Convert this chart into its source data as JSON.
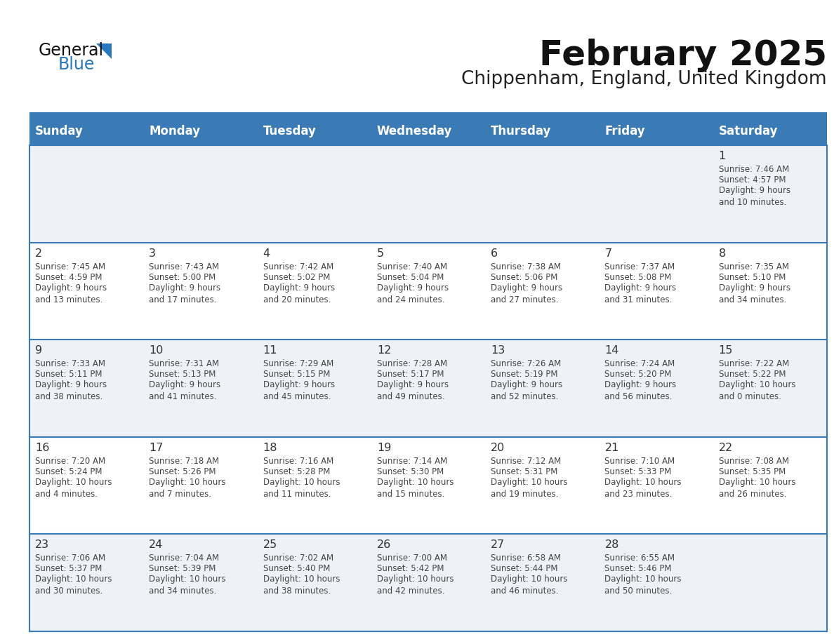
{
  "title": "February 2025",
  "subtitle": "Chippenham, England, United Kingdom",
  "header_bg": "#3a7ab5",
  "header_text": "#ffffff",
  "days_of_week": [
    "Sunday",
    "Monday",
    "Tuesday",
    "Wednesday",
    "Thursday",
    "Friday",
    "Saturday"
  ],
  "separator_color": "#3a7ab5",
  "cell_bg_odd": "#eef2f7",
  "cell_bg_even": "#ffffff",
  "grid_line_color": "#3a7ab5",
  "day_number_color": "#333333",
  "text_color": "#444444",
  "logo_general_color": "#1a1a1a",
  "logo_blue_color": "#2878c0",
  "calendar_data": [
    [
      null,
      null,
      null,
      null,
      null,
      null,
      {
        "day": 1,
        "sunrise": "7:46 AM",
        "sunset": "4:57 PM",
        "daylight": "9 hours\nand 10 minutes."
      }
    ],
    [
      {
        "day": 2,
        "sunrise": "7:45 AM",
        "sunset": "4:59 PM",
        "daylight": "9 hours\nand 13 minutes."
      },
      {
        "day": 3,
        "sunrise": "7:43 AM",
        "sunset": "5:00 PM",
        "daylight": "9 hours\nand 17 minutes."
      },
      {
        "day": 4,
        "sunrise": "7:42 AM",
        "sunset": "5:02 PM",
        "daylight": "9 hours\nand 20 minutes."
      },
      {
        "day": 5,
        "sunrise": "7:40 AM",
        "sunset": "5:04 PM",
        "daylight": "9 hours\nand 24 minutes."
      },
      {
        "day": 6,
        "sunrise": "7:38 AM",
        "sunset": "5:06 PM",
        "daylight": "9 hours\nand 27 minutes."
      },
      {
        "day": 7,
        "sunrise": "7:37 AM",
        "sunset": "5:08 PM",
        "daylight": "9 hours\nand 31 minutes."
      },
      {
        "day": 8,
        "sunrise": "7:35 AM",
        "sunset": "5:10 PM",
        "daylight": "9 hours\nand 34 minutes."
      }
    ],
    [
      {
        "day": 9,
        "sunrise": "7:33 AM",
        "sunset": "5:11 PM",
        "daylight": "9 hours\nand 38 minutes."
      },
      {
        "day": 10,
        "sunrise": "7:31 AM",
        "sunset": "5:13 PM",
        "daylight": "9 hours\nand 41 minutes."
      },
      {
        "day": 11,
        "sunrise": "7:29 AM",
        "sunset": "5:15 PM",
        "daylight": "9 hours\nand 45 minutes."
      },
      {
        "day": 12,
        "sunrise": "7:28 AM",
        "sunset": "5:17 PM",
        "daylight": "9 hours\nand 49 minutes."
      },
      {
        "day": 13,
        "sunrise": "7:26 AM",
        "sunset": "5:19 PM",
        "daylight": "9 hours\nand 52 minutes."
      },
      {
        "day": 14,
        "sunrise": "7:24 AM",
        "sunset": "5:20 PM",
        "daylight": "9 hours\nand 56 minutes."
      },
      {
        "day": 15,
        "sunrise": "7:22 AM",
        "sunset": "5:22 PM",
        "daylight": "10 hours\nand 0 minutes."
      }
    ],
    [
      {
        "day": 16,
        "sunrise": "7:20 AM",
        "sunset": "5:24 PM",
        "daylight": "10 hours\nand 4 minutes."
      },
      {
        "day": 17,
        "sunrise": "7:18 AM",
        "sunset": "5:26 PM",
        "daylight": "10 hours\nand 7 minutes."
      },
      {
        "day": 18,
        "sunrise": "7:16 AM",
        "sunset": "5:28 PM",
        "daylight": "10 hours\nand 11 minutes."
      },
      {
        "day": 19,
        "sunrise": "7:14 AM",
        "sunset": "5:30 PM",
        "daylight": "10 hours\nand 15 minutes."
      },
      {
        "day": 20,
        "sunrise": "7:12 AM",
        "sunset": "5:31 PM",
        "daylight": "10 hours\nand 19 minutes."
      },
      {
        "day": 21,
        "sunrise": "7:10 AM",
        "sunset": "5:33 PM",
        "daylight": "10 hours\nand 23 minutes."
      },
      {
        "day": 22,
        "sunrise": "7:08 AM",
        "sunset": "5:35 PM",
        "daylight": "10 hours\nand 26 minutes."
      }
    ],
    [
      {
        "day": 23,
        "sunrise": "7:06 AM",
        "sunset": "5:37 PM",
        "daylight": "10 hours\nand 30 minutes."
      },
      {
        "day": 24,
        "sunrise": "7:04 AM",
        "sunset": "5:39 PM",
        "daylight": "10 hours\nand 34 minutes."
      },
      {
        "day": 25,
        "sunrise": "7:02 AM",
        "sunset": "5:40 PM",
        "daylight": "10 hours\nand 38 minutes."
      },
      {
        "day": 26,
        "sunrise": "7:00 AM",
        "sunset": "5:42 PM",
        "daylight": "10 hours\nand 42 minutes."
      },
      {
        "day": 27,
        "sunrise": "6:58 AM",
        "sunset": "5:44 PM",
        "daylight": "10 hours\nand 46 minutes."
      },
      {
        "day": 28,
        "sunrise": "6:55 AM",
        "sunset": "5:46 PM",
        "daylight": "10 hours\nand 50 minutes."
      },
      null
    ]
  ]
}
